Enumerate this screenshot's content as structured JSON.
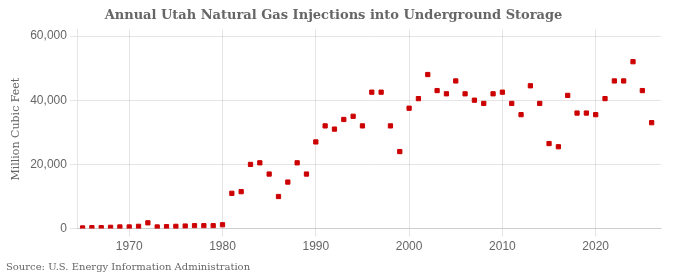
{
  "chart_data": {
    "type": "scatter",
    "title": "Annual Utah Natural Gas Injections into Underground Storage",
    "ylabel": "Million Cubic Feet",
    "annotations": [
      "Source: U.S. Energy Information Administration"
    ],
    "color": "#cc0000",
    "marker": "square",
    "grid": true,
    "xlim": [
      1964.5,
      2027
    ],
    "ylim": [
      0,
      62000
    ],
    "xticks": [
      1970,
      1980,
      1990,
      2000,
      2010,
      2020
    ],
    "yticks": [
      0,
      {
        "value": 20000,
        "label": "20,000"
      },
      {
        "value": 40000,
        "label": "40,000"
      },
      {
        "value": 60000,
        "label": "60,000"
      }
    ],
    "x": [
      1965,
      1966,
      1967,
      1968,
      1969,
      1970,
      1971,
      1972,
      1973,
      1974,
      1975,
      1976,
      1977,
      1978,
      1979,
      1980,
      1981,
      1982,
      1983,
      1984,
      1985,
      1986,
      1987,
      1988,
      1989,
      1990,
      1991,
      1992,
      1993,
      1994,
      1995,
      1996,
      1997,
      1998,
      1999,
      2000,
      2001,
      2002,
      2003,
      2004,
      2005,
      2006,
      2007,
      2008,
      2009,
      2010,
      2011,
      2012,
      2013,
      2014,
      2015,
      2016,
      2017,
      2018,
      2019,
      2020,
      2021,
      2022,
      2023,
      2024,
      2025,
      2026
    ],
    "values": [
      200,
      300,
      300,
      400,
      500,
      500,
      700,
      1800,
      500,
      600,
      700,
      800,
      900,
      900,
      900,
      1200,
      11000,
      11500,
      20000,
      20500,
      17000,
      10000,
      14500,
      20500,
      17000,
      27000,
      32000,
      31000,
      34000,
      35000,
      32000,
      42500,
      42500,
      32000,
      24000,
      37500,
      40500,
      48000,
      43000,
      42000,
      46000,
      42000,
      40000,
      39000,
      42000,
      42500,
      39000,
      35500,
      44500,
      39000,
      26500,
      25500,
      41500,
      36000,
      36000,
      35500,
      40500,
      46000,
      46000,
      52000,
      43000,
      33000
    ]
  }
}
